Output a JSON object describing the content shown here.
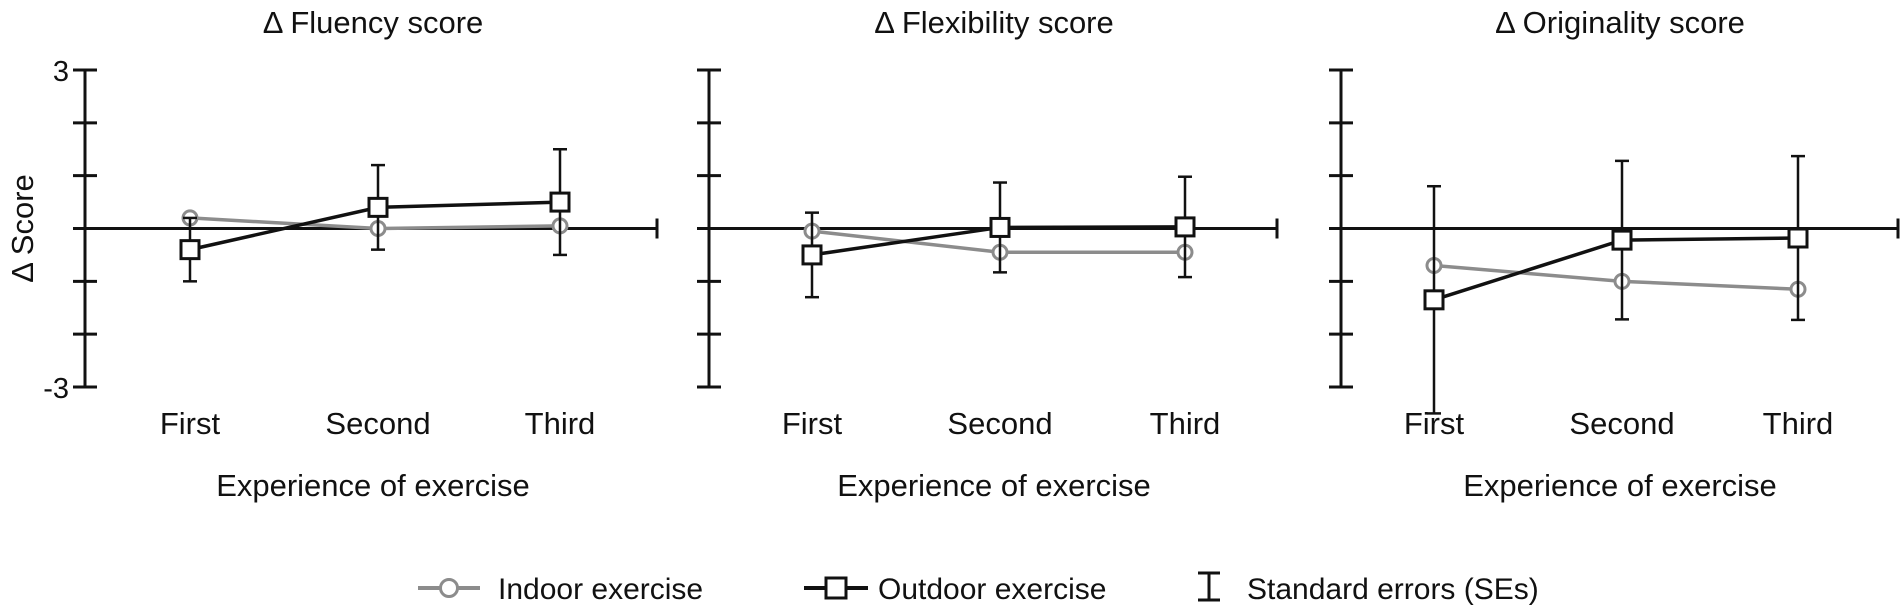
{
  "legend": {
    "indoor": "Indoor exercise",
    "outdoor": "Outdoor exercise",
    "se": "Standard errors (SEs)"
  },
  "colors": {
    "indoor": "#8c8c8c",
    "outdoor": "#111111",
    "axis": "#111111"
  },
  "chart_data": [
    {
      "type": "line",
      "title": "Δ Fluency score",
      "xlabel": "Experience of exercise",
      "ylabel": "Δ Score",
      "ylim": [
        -3,
        3
      ],
      "y_tick_labels": [
        "3",
        "-3"
      ],
      "categories": [
        "First",
        "Second",
        "Third"
      ],
      "grid": false,
      "series": [
        {
          "name": "Indoor exercise",
          "marker": "circle",
          "values": [
            0.2,
            0.0,
            0.05
          ]
        },
        {
          "name": "Outdoor exercise",
          "marker": "square",
          "values": [
            -0.4,
            0.4,
            0.5
          ],
          "se": [
            0.6,
            0.8,
            1.0
          ]
        }
      ]
    },
    {
      "type": "line",
      "title": "Δ Flexibility score",
      "xlabel": "Experience of exercise",
      "ylabel": "",
      "ylim": [
        -3,
        3
      ],
      "categories": [
        "First",
        "Second",
        "Third"
      ],
      "grid": false,
      "series": [
        {
          "name": "Indoor exercise",
          "marker": "circle",
          "values": [
            -0.05,
            -0.45,
            -0.45
          ]
        },
        {
          "name": "Outdoor exercise",
          "marker": "square",
          "values": [
            -0.5,
            0.02,
            0.03
          ],
          "se": [
            0.8,
            0.85,
            0.95
          ]
        }
      ]
    },
    {
      "type": "line",
      "title": "Δ Originality score",
      "xlabel": "Experience of exercise",
      "ylabel": "",
      "ylim": [
        -3,
        3
      ],
      "categories": [
        "First",
        "Second",
        "Third"
      ],
      "grid": false,
      "series": [
        {
          "name": "Indoor exercise",
          "marker": "circle",
          "values": [
            -0.7,
            -1.0,
            -1.15
          ]
        },
        {
          "name": "Outdoor exercise",
          "marker": "square",
          "values": [
            -1.35,
            -0.22,
            -0.18
          ],
          "se": [
            2.15,
            1.5,
            1.55
          ]
        }
      ]
    }
  ]
}
